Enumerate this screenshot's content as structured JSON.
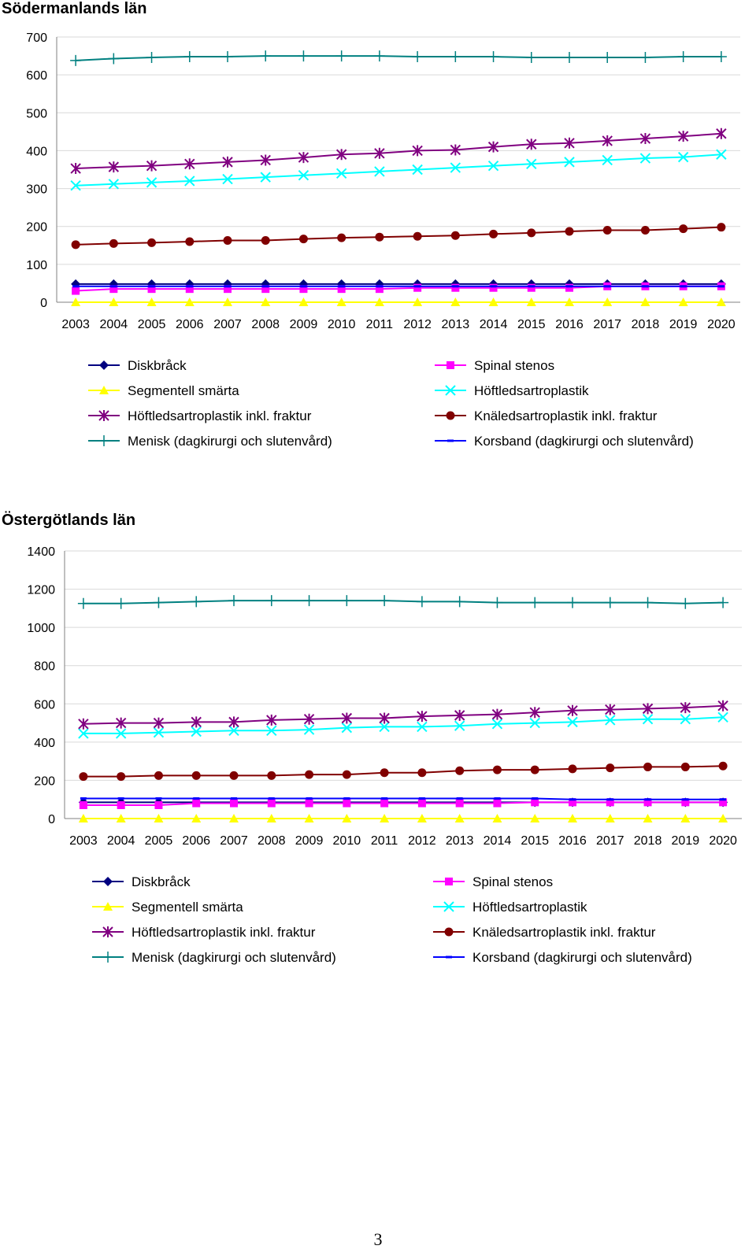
{
  "chart_data": [
    {
      "type": "line",
      "title": "Södermanlands län",
      "xlabel": "",
      "ylabel": "",
      "ylim": [
        0,
        700
      ],
      "yticks": [
        0,
        100,
        200,
        300,
        400,
        500,
        600,
        700
      ],
      "categories": [
        "2003",
        "2004",
        "2005",
        "2006",
        "2007",
        "2008",
        "2009",
        "2010",
        "2011",
        "2012",
        "2013",
        "2014",
        "2015",
        "2016",
        "2017",
        "2018",
        "2019",
        "2020"
      ],
      "legend_position": "bottom",
      "series": [
        {
          "name": "Diskbråck",
          "color": "#000080",
          "marker": "diamond",
          "values": [
            48,
            48,
            48,
            48,
            48,
            48,
            48,
            48,
            48,
            48,
            48,
            48,
            48,
            48,
            48,
            48,
            48,
            48
          ]
        },
        {
          "name": "Spinal stenos",
          "color": "#FF00FF",
          "marker": "square",
          "values": [
            30,
            35,
            35,
            35,
            35,
            35,
            35,
            35,
            35,
            38,
            38,
            38,
            38,
            38,
            42,
            42,
            42,
            42
          ]
        },
        {
          "name": "Segmentell smärta",
          "color": "#FFFF00",
          "marker": "triangle",
          "values": [
            0,
            0,
            0,
            0,
            0,
            0,
            0,
            0,
            0,
            0,
            0,
            0,
            0,
            0,
            0,
            0,
            0,
            0
          ]
        },
        {
          "name": "Höftledsartroplastik",
          "color": "#00FFFF",
          "marker": "x",
          "values": [
            308,
            312,
            316,
            320,
            325,
            330,
            335,
            340,
            345,
            350,
            355,
            360,
            365,
            370,
            375,
            380,
            383,
            390
          ]
        },
        {
          "name": "Höftledsartroplastik inkl. fraktur",
          "color": "#800080",
          "marker": "asterisk",
          "values": [
            353,
            357,
            360,
            365,
            370,
            375,
            382,
            390,
            393,
            400,
            402,
            410,
            417,
            420,
            426,
            432,
            438,
            445
          ]
        },
        {
          "name": "Knäledsartroplastik inkl. fraktur",
          "color": "#800000",
          "marker": "circle",
          "values": [
            152,
            155,
            157,
            160,
            163,
            163,
            167,
            170,
            172,
            174,
            176,
            180,
            183,
            187,
            190,
            190,
            194,
            198
          ]
        },
        {
          "name": "Menisk (dagkirurgi och slutenvård)",
          "color": "#008080",
          "marker": "plus",
          "values": [
            638,
            643,
            646,
            648,
            648,
            650,
            650,
            650,
            650,
            648,
            648,
            648,
            646,
            646,
            646,
            646,
            648,
            648
          ]
        },
        {
          "name": "Korsband (dagkirurgi och slutenvård)",
          "color": "#0000FF",
          "marker": "dash",
          "values": [
            42,
            42,
            42,
            42,
            42,
            42,
            42,
            42,
            42,
            42,
            42,
            42,
            42,
            42,
            42,
            42,
            42,
            42
          ]
        }
      ]
    },
    {
      "type": "line",
      "title": "Östergötlands län",
      "xlabel": "",
      "ylabel": "",
      "ylim": [
        0,
        1400
      ],
      "yticks": [
        0,
        200,
        400,
        600,
        800,
        1000,
        1200,
        1400
      ],
      "categories": [
        "2003",
        "2004",
        "2005",
        "2006",
        "2007",
        "2008",
        "2009",
        "2010",
        "2011",
        "2012",
        "2013",
        "2014",
        "2015",
        "2016",
        "2017",
        "2018",
        "2019",
        "2020"
      ],
      "legend_position": "bottom",
      "series": [
        {
          "name": "Diskbråck",
          "color": "#000080",
          "marker": "diamond",
          "values": [
            85,
            85,
            85,
            85,
            85,
            85,
            85,
            85,
            85,
            85,
            85,
            85,
            85,
            85,
            85,
            85,
            85,
            85
          ]
        },
        {
          "name": "Spinal stenos",
          "color": "#FF00FF",
          "marker": "square",
          "values": [
            70,
            70,
            70,
            80,
            80,
            80,
            80,
            80,
            80,
            80,
            80,
            80,
            85,
            85,
            85,
            85,
            85,
            85
          ]
        },
        {
          "name": "Segmentell smärta",
          "color": "#FFFF00",
          "marker": "triangle",
          "values": [
            0,
            0,
            0,
            0,
            0,
            0,
            0,
            0,
            0,
            0,
            0,
            0,
            0,
            0,
            0,
            0,
            0,
            0
          ]
        },
        {
          "name": "Höftledsartroplastik",
          "color": "#00FFFF",
          "marker": "x",
          "values": [
            445,
            445,
            450,
            455,
            460,
            460,
            465,
            475,
            480,
            480,
            485,
            495,
            500,
            505,
            515,
            520,
            520,
            530
          ]
        },
        {
          "name": "Höftledsartroplastik inkl. fraktur",
          "color": "#800080",
          "marker": "asterisk",
          "values": [
            495,
            500,
            500,
            505,
            505,
            515,
            520,
            525,
            525,
            535,
            540,
            545,
            555,
            565,
            570,
            575,
            580,
            590
          ]
        },
        {
          "name": "Knäledsartroplastik inkl. fraktur",
          "color": "#800000",
          "marker": "circle",
          "values": [
            220,
            220,
            225,
            225,
            225,
            225,
            230,
            230,
            240,
            240,
            250,
            255,
            255,
            260,
            265,
            270,
            270,
            275
          ]
        },
        {
          "name": "Menisk (dagkirurgi och slutenvård)",
          "color": "#008080",
          "marker": "plus",
          "values": [
            1125,
            1125,
            1130,
            1135,
            1140,
            1140,
            1140,
            1140,
            1140,
            1135,
            1135,
            1130,
            1130,
            1130,
            1130,
            1130,
            1125,
            1130
          ]
        },
        {
          "name": "Korsband (dagkirurgi och slutenvård)",
          "color": "#0000FF",
          "marker": "dash",
          "values": [
            105,
            105,
            105,
            105,
            105,
            105,
            105,
            105,
            105,
            105,
            105,
            105,
            105,
            100,
            100,
            100,
            100,
            100
          ]
        }
      ]
    }
  ],
  "page_number": "3"
}
